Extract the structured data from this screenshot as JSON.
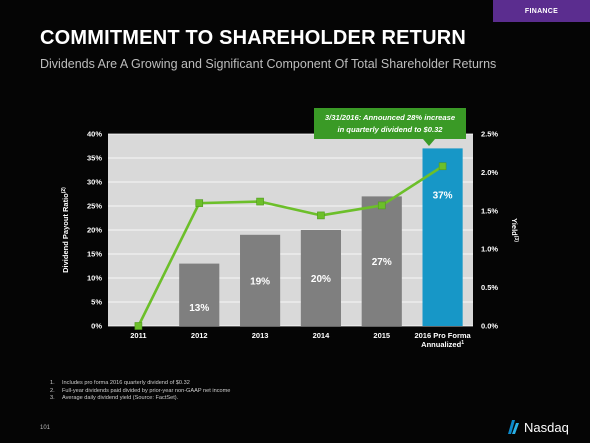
{
  "tag": "FINANCE",
  "title": "COMMITMENT TO SHAREHOLDER RETURN",
  "subtitle": "Dividends Are A Growing and Significant Component Of Total Shareholder Returns",
  "callout": {
    "line1": "3/31/2016: Announced 28% increase",
    "line2": "in quarterly dividend to $0.32"
  },
  "chart_data": {
    "type": "bar",
    "categories": [
      "2011",
      "2012",
      "2013",
      "2014",
      "2015",
      "2016 Pro Forma Annualized"
    ],
    "category_labels": [
      [
        "2011"
      ],
      [
        "2012"
      ],
      [
        "2013"
      ],
      [
        "2014"
      ],
      [
        "2015"
      ],
      [
        "2016 Pro Forma",
        "Annualized"
      ]
    ],
    "category_superscripts": [
      "",
      "",
      "",
      "",
      "",
      "1"
    ],
    "series": [
      {
        "name": "Dividend Payout Ratio",
        "type": "bar",
        "axis": "left",
        "values": [
          null,
          13,
          19,
          20,
          27,
          37
        ],
        "labels": [
          "",
          "13%",
          "19%",
          "20%",
          "27%",
          "37%"
        ],
        "colors": [
          "#7f7f7f",
          "#7f7f7f",
          "#7f7f7f",
          "#7f7f7f",
          "#7f7f7f",
          "#1797c7"
        ],
        "label_color": "#ffffff",
        "highlight_label_color": "#ffffff"
      },
      {
        "name": "Yield",
        "type": "line",
        "axis": "right",
        "values": [
          0.0,
          1.6,
          1.62,
          1.44,
          1.57,
          2.08
        ],
        "color": "#6cbf2a"
      }
    ],
    "ylabel": "Dividend Payout Ratio",
    "ylabel_superscript": "(2)",
    "y2label": "Yield",
    "y2label_superscript": "(3)",
    "ylim": [
      0,
      40
    ],
    "y2lim": [
      0,
      2.5
    ],
    "yticks": [
      "0%",
      "5%",
      "10%",
      "15%",
      "20%",
      "25%",
      "30%",
      "35%",
      "40%"
    ],
    "y2ticks": [
      "0.0%",
      "0.5%",
      "1.0%",
      "1.5%",
      "2.0%",
      "2.5%"
    ],
    "grid": true,
    "background": "#d9d9d9"
  },
  "notes": [
    {
      "num": "1.",
      "text": "Includes  pro forma 2016 quarterly dividend of $0.32"
    },
    {
      "num": "2.",
      "text": "Full-year dividends paid divided by prior-year non-GAAP net income"
    },
    {
      "num": "3.",
      "text": "Average daily dividend yield (Source: FactSet)."
    }
  ],
  "page_number": "101",
  "logo_text": "Nasdaq",
  "colors": {
    "accent_purple": "#5b2d8f",
    "bar_gray": "#7f7f7f",
    "bar_blue": "#1797c7",
    "line_green": "#6cbf2a",
    "callout_green": "#3a9a26"
  }
}
